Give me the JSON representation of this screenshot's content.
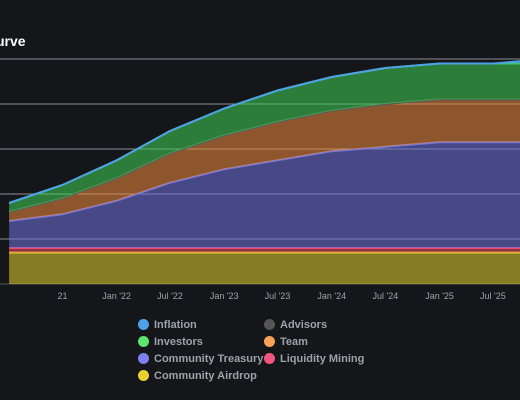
{
  "chart_data": {
    "type": "area",
    "stacked": true,
    "title": "urve",
    "xlabel": "",
    "ylabel": "",
    "x": [
      "2021-01",
      "2021-07",
      "2022-01",
      "2022-07",
      "2023-01",
      "2023-07",
      "2024-01",
      "2024-07",
      "2025-01",
      "2025-07",
      "2025-10"
    ],
    "x_tick_labels": [
      "21",
      "Jan '22",
      "Jul '22",
      "Jan '23",
      "Jul '23",
      "Jan '24",
      "Jul '24",
      "Jan '25",
      "Jul '25"
    ],
    "x_tick_dates": [
      "2021-07",
      "2022-01",
      "2022-07",
      "2023-01",
      "2023-07",
      "2024-01",
      "2024-07",
      "2025-01",
      "2025-07"
    ],
    "ylim": [
      0,
      100
    ],
    "grid": true,
    "legend_position": "bottom",
    "series": [
      {
        "name": "Community Airdrop",
        "color": "#e6d22e",
        "values": [
          14,
          14,
          14,
          14,
          14,
          14,
          14,
          14,
          14,
          14,
          14
        ]
      },
      {
        "name": "Liquidity Mining",
        "color": "#ef4b6b",
        "values": [
          2,
          2,
          2,
          2,
          2,
          2,
          2,
          2,
          2,
          2,
          2
        ]
      },
      {
        "name": "Community Treasury",
        "color": "#6f74e0",
        "values": [
          12,
          15,
          21,
          29,
          35,
          39,
          43,
          45,
          47,
          47,
          47
        ]
      },
      {
        "name": "Team",
        "color": "#f28c3c",
        "values": [
          4,
          7,
          10,
          13,
          15,
          17,
          18,
          19,
          19,
          19,
          19
        ]
      },
      {
        "name": "Advisors",
        "color": "#555555",
        "values": [
          0,
          0,
          0,
          0,
          0,
          0,
          0,
          0,
          0,
          0,
          0
        ]
      },
      {
        "name": "Investors",
        "color": "#3fd156",
        "values": [
          4,
          6,
          8,
          10,
          12,
          14,
          15,
          16,
          16,
          16,
          16
        ]
      },
      {
        "name": "Inflation",
        "color": "#4ea1e8",
        "values": [
          0,
          0,
          0,
          0,
          0,
          0,
          0,
          0,
          0,
          0,
          1
        ]
      }
    ],
    "legend": [
      {
        "name": "Inflation",
        "color": "#4ea1e8"
      },
      {
        "name": "Advisors",
        "color": "#555555"
      },
      {
        "name": "Investors",
        "color": "#5ee36d"
      },
      {
        "name": "Team",
        "color": "#f7a15a"
      },
      {
        "name": "Community Treasury",
        "color": "#7b7ff0"
      },
      {
        "name": "Liquidity Mining",
        "color": "#f2567a"
      },
      {
        "name": "Community Airdrop",
        "color": "#e6d22e"
      }
    ]
  }
}
